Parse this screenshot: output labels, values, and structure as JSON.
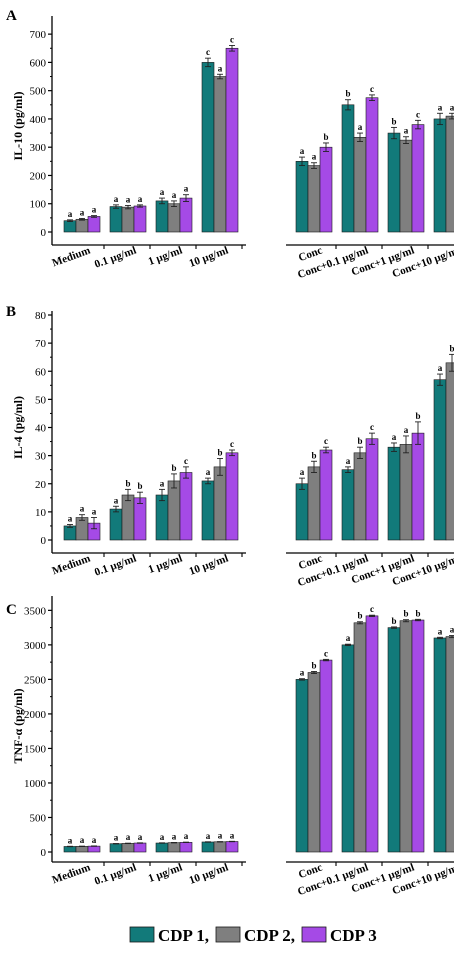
{
  "colors": {
    "cdp1": "#127a7a",
    "cdp2": "#7f7f7f",
    "cdp3": "#a54ae6",
    "axis": "#000000"
  },
  "legend": {
    "items": [
      {
        "label": "CDP 1,",
        "color": "#127a7a"
      },
      {
        "label": "CDP 2,",
        "color": "#7f7f7f"
      },
      {
        "label": "CDP 3",
        "color": "#a54ae6"
      }
    ]
  },
  "chart_data": [
    {
      "type": "bar",
      "panel_label": "A",
      "ylabel": "IL-10 (pg/ml)",
      "xlabel": "",
      "ylim": [
        -50,
        750
      ],
      "yticks": [
        0,
        100,
        200,
        300,
        400,
        500,
        600,
        700
      ],
      "categories": [
        "Medium",
        "0.1 µg/ml",
        "1 µg/ml",
        "10 µg/ml",
        "Conc",
        "Conc+0.1 µg/ml",
        "Conc+1 µg/ml",
        "Conc+10 µg/ml"
      ],
      "gap_after": 3,
      "series": [
        {
          "name": "CDP 1",
          "values": [
            40,
            90,
            110,
            600,
            250,
            450,
            350,
            400
          ],
          "errors": [
            3,
            6,
            10,
            15,
            15,
            18,
            20,
            20
          ],
          "sig": [
            "a",
            "a",
            "a",
            "c",
            "a",
            "b",
            "b",
            "a"
          ]
        },
        {
          "name": "CDP 2",
          "values": [
            45,
            88,
            100,
            550,
            235,
            335,
            325,
            410
          ],
          "errors": [
            3,
            6,
            10,
            8,
            10,
            15,
            12,
            10
          ],
          "sig": [
            "a",
            "a",
            "a",
            "a",
            "a",
            "a",
            "a",
            "a"
          ]
        },
        {
          "name": "CDP 3",
          "values": [
            55,
            92,
            120,
            650,
            300,
            475,
            380,
            440
          ],
          "errors": [
            3,
            4,
            12,
            10,
            15,
            10,
            15,
            15
          ],
          "sig": [
            "a",
            "a",
            "a",
            "c",
            "b",
            "c",
            "c",
            "b"
          ]
        }
      ]
    },
    {
      "type": "bar",
      "panel_label": "B",
      "ylabel": "IL-4 (pg/ml)",
      "xlabel": "",
      "ylim": [
        -3,
        80
      ],
      "yticks": [
        0,
        10,
        20,
        30,
        40,
        50,
        60,
        70,
        80
      ],
      "categories": [
        "Medium",
        "0.1 µg/ml",
        "1 µg/ml",
        "10 µg/ml",
        "Conc",
        "Conc+0.1 µg/ml",
        "Conc+1 µg/ml",
        "Conc+10 µg/ml"
      ],
      "gap_after": 3,
      "series": [
        {
          "name": "CDP 1",
          "values": [
            5,
            11,
            16,
            21,
            20,
            25,
            33,
            57
          ],
          "errors": [
            0.5,
            1,
            2,
            1,
            2,
            1,
            1.5,
            2
          ],
          "sig": [
            "a",
            "a",
            "a",
            "a",
            "a",
            "a",
            "a",
            "a"
          ]
        },
        {
          "name": "CDP 2",
          "values": [
            8,
            16,
            21,
            26,
            26,
            31,
            34,
            63
          ],
          "errors": [
            1,
            2,
            2.5,
            3,
            2,
            2,
            3,
            3
          ],
          "sig": [
            "a",
            "b",
            "b",
            "b",
            "b",
            "b",
            "a",
            "b"
          ]
        },
        {
          "name": "CDP 3",
          "values": [
            6,
            15,
            24,
            31,
            32,
            36,
            38,
            72
          ],
          "errors": [
            2,
            2,
            2,
            1,
            1,
            2,
            4,
            3
          ],
          "sig": [
            "a",
            "b",
            "c",
            "c",
            "c",
            "c",
            "b",
            "c"
          ]
        }
      ]
    },
    {
      "type": "bar",
      "panel_label": "C",
      "ylabel": "TNF-α (pg/ml)",
      "xlabel": "",
      "ylim": [
        -150,
        3650
      ],
      "yticks": [
        0,
        500,
        1000,
        1500,
        2000,
        2500,
        3000,
        3500
      ],
      "categories": [
        "Medium",
        "0.1 µg/ml",
        "1 µg/ml",
        "10 µg/ml",
        "Conc",
        "Conc+0.1 µg/ml",
        "Conc+1 µg/ml",
        "Conc+10 µg/ml"
      ],
      "gap_after": 3,
      "series": [
        {
          "name": "CDP 1",
          "values": [
            80,
            120,
            130,
            145,
            2500,
            3000,
            3250,
            3100
          ],
          "errors": [
            3,
            3,
            3,
            3,
            10,
            10,
            10,
            10
          ],
          "sig": [
            "a",
            "a",
            "a",
            "a",
            "a",
            "a",
            "b",
            "a"
          ]
        },
        {
          "name": "CDP 2",
          "values": [
            82,
            125,
            135,
            148,
            2600,
            3320,
            3350,
            3120
          ],
          "errors": [
            3,
            3,
            3,
            3,
            15,
            15,
            15,
            15
          ],
          "sig": [
            "a",
            "a",
            "a",
            "a",
            "b",
            "b",
            "b",
            "a"
          ]
        },
        {
          "name": "CDP 3",
          "values": [
            85,
            130,
            140,
            152,
            2780,
            3420,
            3360,
            3220
          ],
          "errors": [
            3,
            3,
            3,
            3,
            10,
            10,
            10,
            10
          ],
          "sig": [
            "a",
            "a",
            "a",
            "a",
            "c",
            "c",
            "b",
            "b"
          ]
        }
      ]
    }
  ]
}
